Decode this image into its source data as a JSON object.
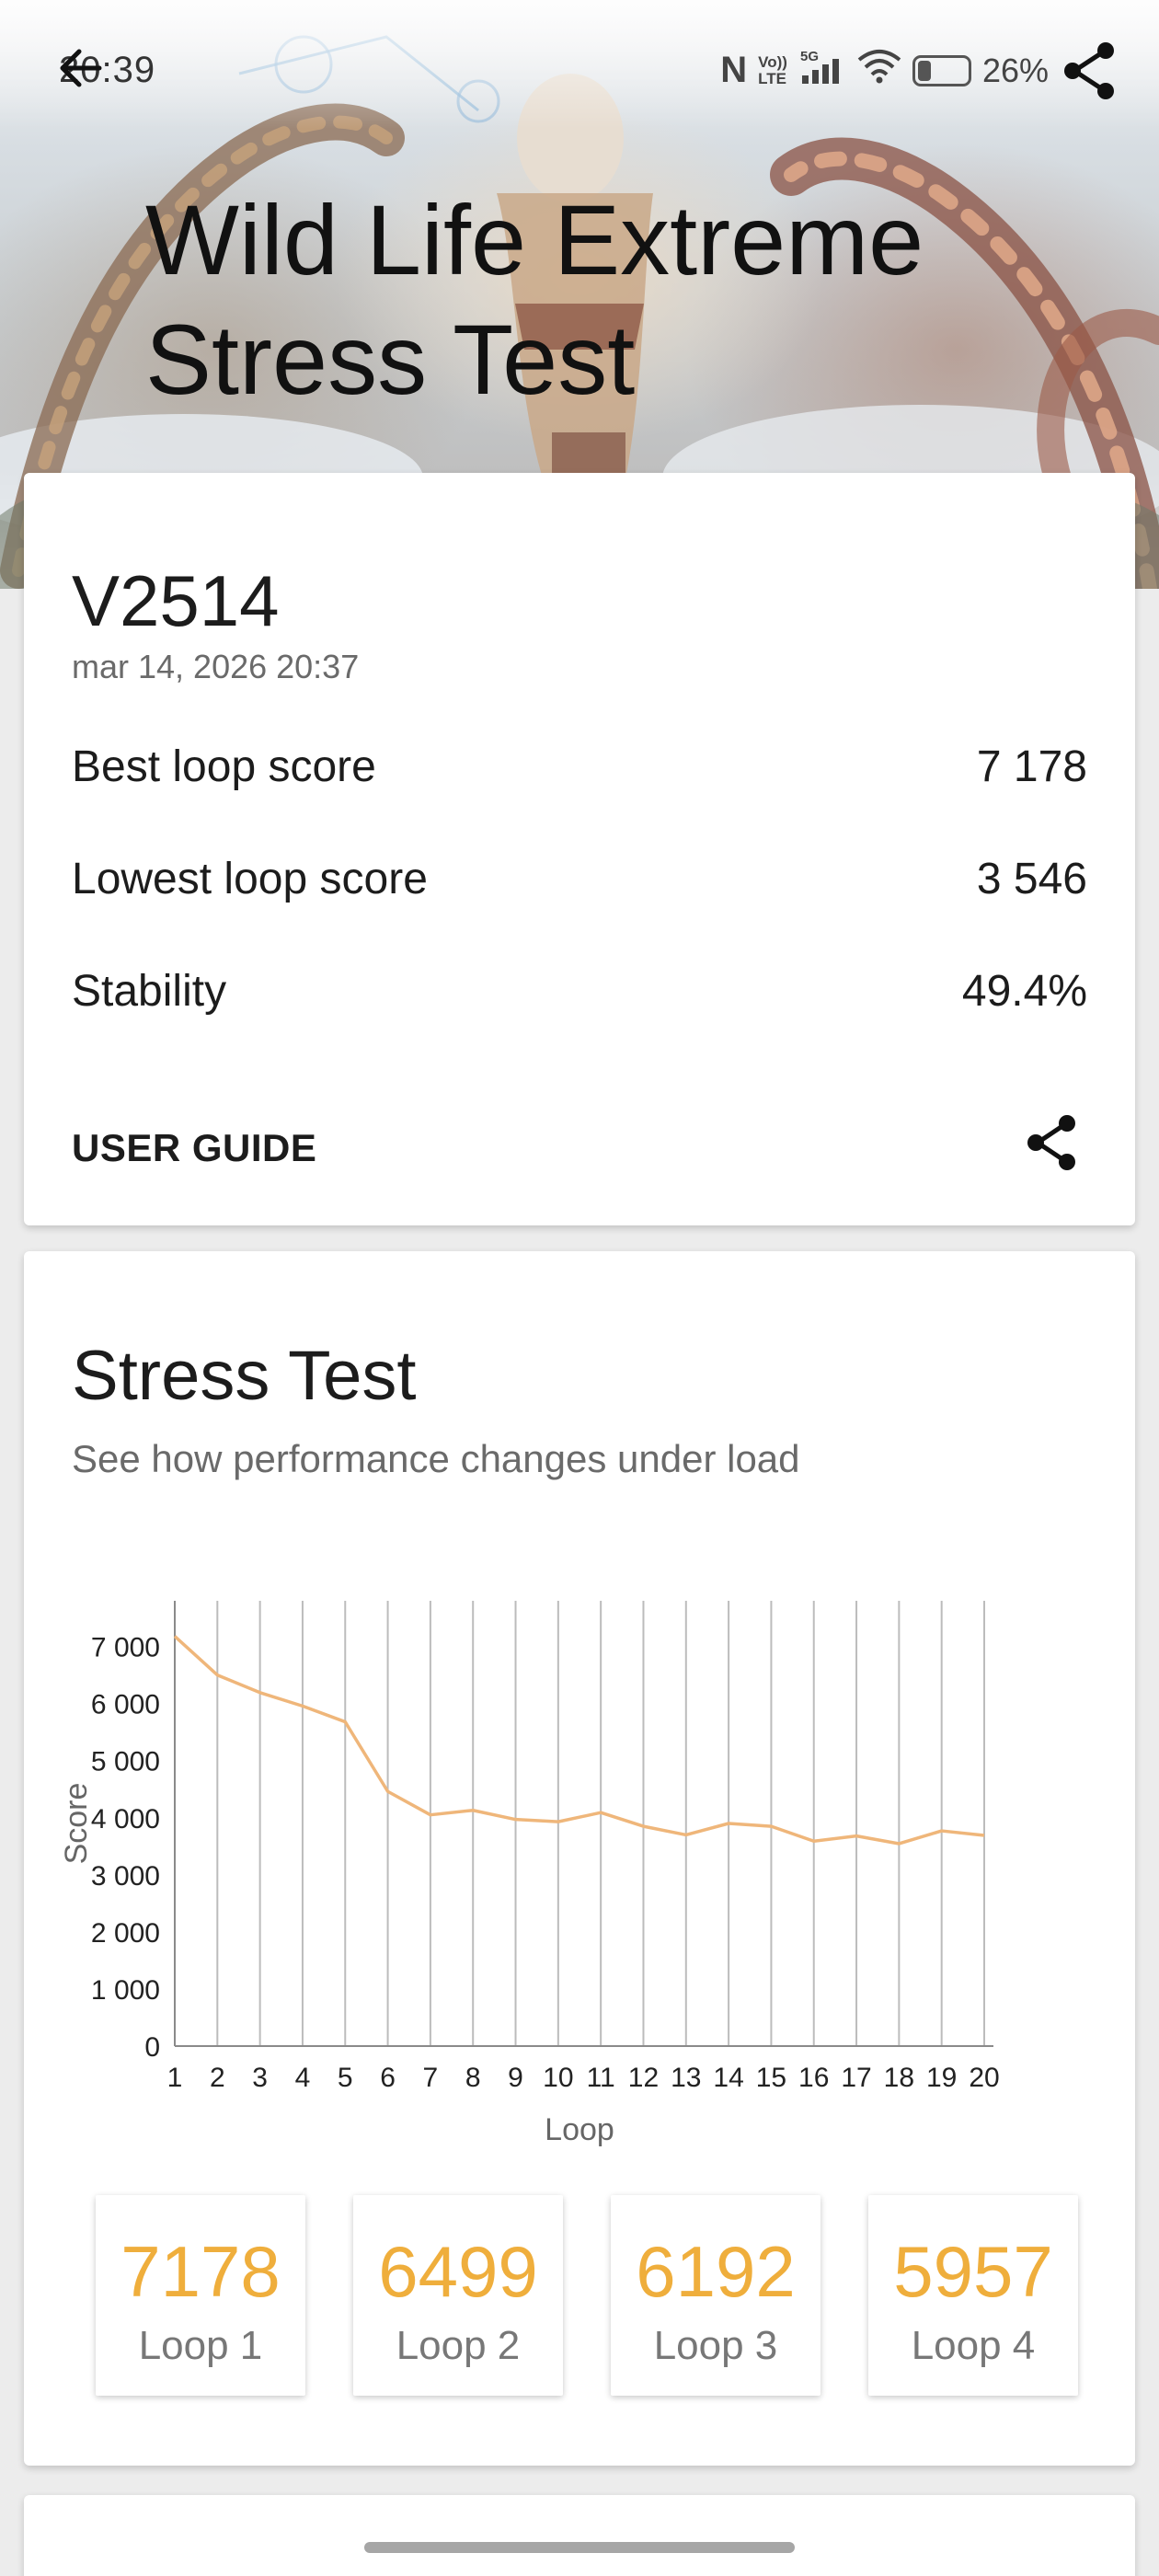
{
  "status_bar": {
    "time": "20:39",
    "nfc_icon": "nfc-icon",
    "volte_line1": "Vo))",
    "volte_line2": "LTE",
    "network": "5G",
    "battery": "26%"
  },
  "header": {
    "title": "Wild Life Extreme Stress Test"
  },
  "summary": {
    "device": "V2514",
    "date": "mar 14, 2026 20:37",
    "metrics": [
      {
        "label": "Best loop score",
        "value": "7 178"
      },
      {
        "label": "Lowest loop score",
        "value": "3 546"
      },
      {
        "label": "Stability",
        "value": "49.4%"
      }
    ],
    "user_guide_label": "USER GUIDE"
  },
  "stress": {
    "title": "Stress Test",
    "subtitle": "See how performance changes under load",
    "loops": [
      {
        "value": "7178",
        "label": "Loop 1"
      },
      {
        "value": "6499",
        "label": "Loop 2"
      },
      {
        "value": "6192",
        "label": "Loop 3"
      },
      {
        "value": "5957",
        "label": "Loop 4"
      }
    ]
  },
  "colors": {
    "accent": "#efae3c",
    "line": "#efb67a"
  },
  "chart_data": {
    "type": "line",
    "xlabel": "Loop",
    "ylabel": "Score",
    "x": [
      1,
      2,
      3,
      4,
      5,
      6,
      7,
      8,
      9,
      10,
      11,
      12,
      13,
      14,
      15,
      16,
      17,
      18,
      19,
      20
    ],
    "ylim": [
      0,
      7800
    ],
    "y_ticks": [
      0,
      1000,
      2000,
      3000,
      4000,
      5000,
      6000,
      7000
    ],
    "y_tick_labels": [
      "0",
      "1 000",
      "2 000",
      "3 000",
      "4 000",
      "5 000",
      "6 000",
      "7 000"
    ],
    "grid": "vertical",
    "series": [
      {
        "values": [
          7178,
          6499,
          6192,
          5957,
          5680,
          4460,
          4050,
          4130,
          3970,
          3930,
          4090,
          3850,
          3700,
          3900,
          3850,
          3590,
          3680,
          3546,
          3770,
          3690
        ]
      }
    ]
  }
}
